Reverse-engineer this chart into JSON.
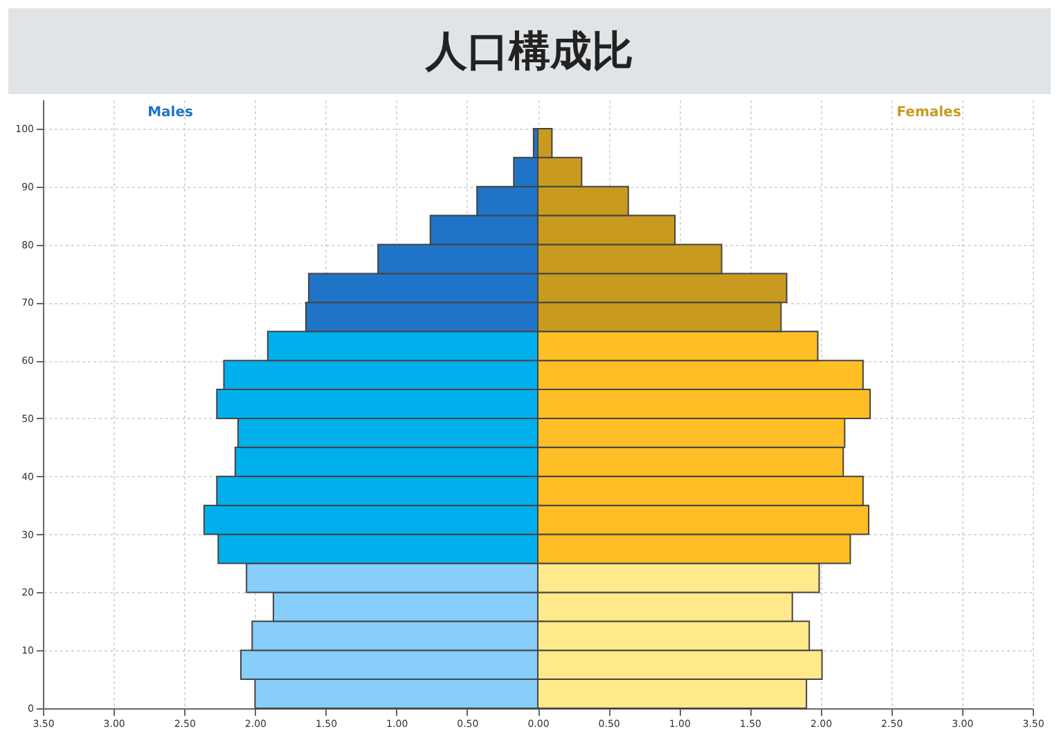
{
  "chart_data": {
    "type": "bar",
    "orientation": "horizontal",
    "stacked": true,
    "title": "人口構成比",
    "x": [
      2.5,
      7.5,
      12.5,
      17.5,
      22.5,
      27.5,
      32.5,
      37.5,
      42.5,
      47.5,
      52.5,
      57.5,
      62.5,
      67.5,
      72.5,
      77.5,
      82.5,
      87.5,
      92.5,
      97.5
    ],
    "series": [
      {
        "name": "Males",
        "values": [
          -2.0,
          -2.1,
          -2.02,
          -1.87,
          -2.06,
          -2.26,
          -2.36,
          -2.27,
          -2.14,
          -2.12,
          -2.27,
          -2.22,
          -1.91,
          -1.64,
          -1.62,
          -1.13,
          -0.76,
          -0.43,
          -0.17,
          -0.03
        ],
        "colors": [
          "#87cefa",
          "#87cefa",
          "#87cefa",
          "#87cefa",
          "#87cefa",
          "#00b0ec",
          "#00b0ec",
          "#00b0ec",
          "#00b0ec",
          "#00b0ec",
          "#00b0ec",
          "#00b0ec",
          "#00b0ec",
          "#1f74c8",
          "#1f74c8",
          "#1f74c8",
          "#1f74c8",
          "#1f74c8",
          "#1f74c8",
          "#1f74c8"
        ]
      },
      {
        "name": "Females",
        "values": [
          1.9,
          2.01,
          1.92,
          1.8,
          1.99,
          2.21,
          2.34,
          2.3,
          2.16,
          2.17,
          2.35,
          2.3,
          1.98,
          1.72,
          1.76,
          1.3,
          0.97,
          0.64,
          0.31,
          0.1
        ],
        "colors": [
          "#ffe98a",
          "#ffe98a",
          "#ffe98a",
          "#ffe98a",
          "#ffe98a",
          "#fdbf25",
          "#fdbf25",
          "#fdbf25",
          "#fdbf25",
          "#fdbf25",
          "#fdbf25",
          "#fdbf25",
          "#fdbf25",
          "#c99a20",
          "#c99a20",
          "#c99a20",
          "#c99a20",
          "#c99a20",
          "#c99a20",
          "#c99a20"
        ]
      }
    ],
    "xlim": [
      -3.5,
      3.5
    ],
    "xticks": [
      {
        "value": -3.5,
        "label": "3.50"
      },
      {
        "value": -3,
        "label": "3.00"
      },
      {
        "value": -2.5,
        "label": "2.50"
      },
      {
        "value": -2,
        "label": "2.00"
      },
      {
        "value": -1.5,
        "label": "1.50"
      },
      {
        "value": -1,
        "label": "1.00"
      },
      {
        "value": -0.5,
        "label": "0.50"
      },
      {
        "value": 0,
        "label": "0.00"
      },
      {
        "value": 0.5,
        "label": "0.50"
      },
      {
        "value": 1,
        "label": "1.00"
      },
      {
        "value": 1.5,
        "label": "1.50"
      },
      {
        "value": 2,
        "label": "2.00"
      },
      {
        "value": 2.5,
        "label": "2.50"
      },
      {
        "value": 3,
        "label": "3.00"
      },
      {
        "value": 3.5,
        "label": "3.50"
      }
    ],
    "ylim": [
      0,
      105
    ],
    "yticks": [
      0,
      10,
      20,
      30,
      40,
      50,
      60,
      70,
      80,
      90,
      100
    ],
    "grid": true
  }
}
